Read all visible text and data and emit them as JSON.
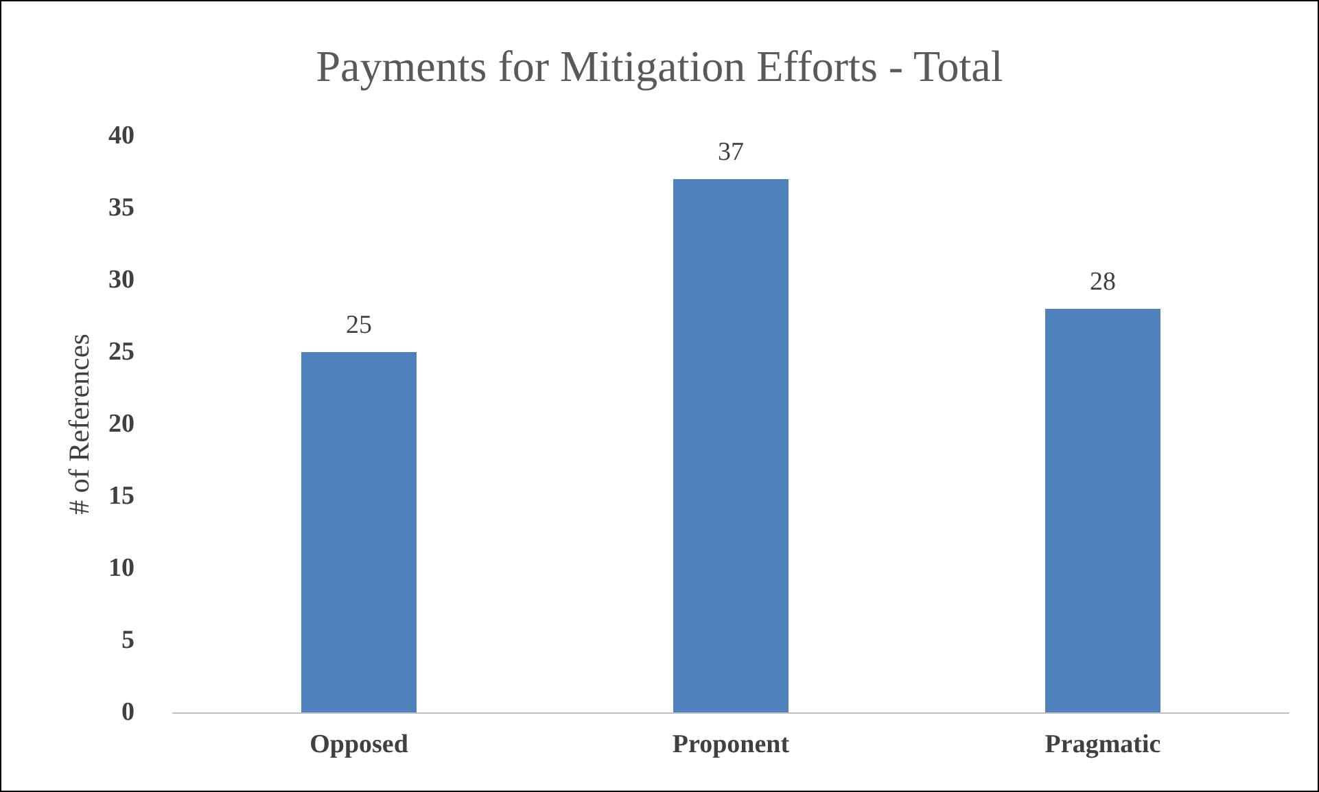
{
  "chart_data": {
    "type": "bar",
    "title": "Payments for Mitigation Efforts - Total",
    "ylabel": "# of References",
    "categories": [
      "Opposed",
      "Proponent",
      "Pragmatic"
    ],
    "values": [
      25,
      37,
      28
    ],
    "color": "#4f81bd",
    "ylim": [
      0,
      40
    ],
    "yticks": [
      0,
      5,
      10,
      15,
      20,
      25,
      30,
      35,
      40
    ],
    "grid": false,
    "data_labels": true
  }
}
